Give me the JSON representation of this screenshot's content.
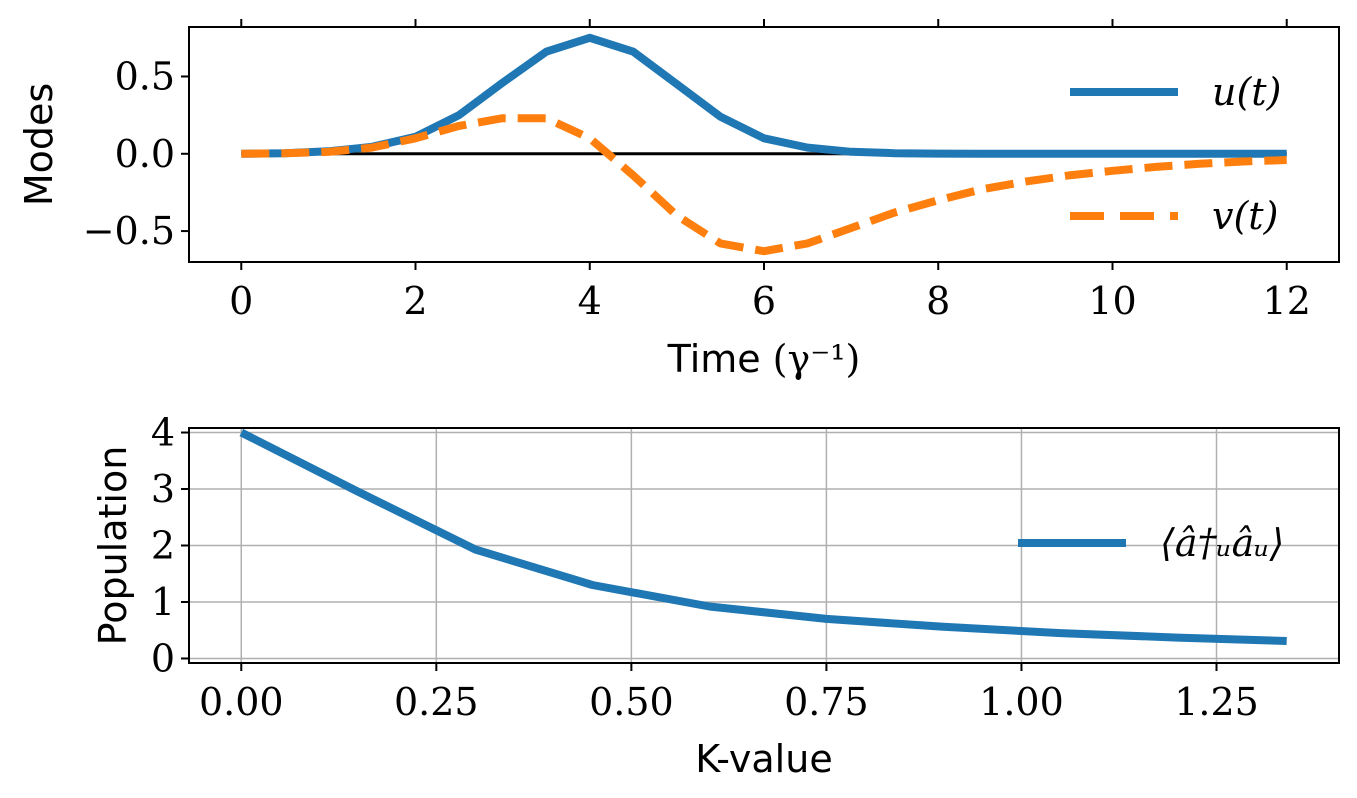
{
  "chart_data": [
    {
      "type": "line",
      "title": "",
      "xlabel": "Time",
      "xlabel_unit": "(γ⁻¹)",
      "ylabel": "Modes",
      "xlim": [
        -0.6,
        12.6
      ],
      "ylim": [
        -0.7,
        0.82
      ],
      "xticks": [
        0,
        2,
        4,
        6,
        8,
        10,
        12
      ],
      "xtick_labels": [
        "0",
        "2",
        "4",
        "6",
        "8",
        "10",
        "12"
      ],
      "yticks": [
        0.5,
        0.0,
        -0.5
      ],
      "ytick_labels": [
        "0.5",
        "0.0",
        "−0.5"
      ],
      "grid": false,
      "legend_position": "right",
      "x": [
        0,
        0.5,
        1,
        1.5,
        2,
        2.5,
        3,
        3.5,
        4,
        4.5,
        5,
        5.5,
        6,
        6.5,
        7,
        7.5,
        8,
        8.5,
        9,
        9.5,
        10,
        10.5,
        11,
        11.5,
        12
      ],
      "series": [
        {
          "name": "u(t)",
          "color": "#1f77b4",
          "style": "solid",
          "values": [
            0.0,
            0.004,
            0.016,
            0.045,
            0.11,
            0.25,
            0.46,
            0.66,
            0.75,
            0.66,
            0.45,
            0.24,
            0.1,
            0.04,
            0.013,
            0.004,
            0.001,
            0,
            0,
            0,
            0,
            0,
            0,
            0,
            0
          ]
        },
        {
          "name": "v(t)",
          "color": "#ff7f0e",
          "style": "dashed",
          "values": [
            0.0,
            0.003,
            0.012,
            0.04,
            0.1,
            0.18,
            0.23,
            0.23,
            0.1,
            -0.14,
            -0.4,
            -0.58,
            -0.63,
            -0.58,
            -0.48,
            -0.38,
            -0.3,
            -0.23,
            -0.18,
            -0.14,
            -0.11,
            -0.085,
            -0.065,
            -0.05,
            -0.04
          ]
        }
      ],
      "reference_line": {
        "y": 0,
        "color": "#000000"
      }
    },
    {
      "type": "line",
      "title": "",
      "xlabel": "K-value",
      "ylabel": "Population",
      "xlim": [
        -0.067,
        1.407
      ],
      "ylim": [
        -0.08,
        4.08
      ],
      "xticks": [
        0.0,
        0.25,
        0.5,
        0.75,
        1.0,
        1.25
      ],
      "xtick_labels": [
        "0.00",
        "0.25",
        "0.50",
        "0.75",
        "1.00",
        "1.25"
      ],
      "yticks": [
        0,
        1,
        2,
        3,
        4
      ],
      "ytick_labels": [
        "0",
        "1",
        "2",
        "3",
        "4"
      ],
      "grid": true,
      "legend_position": "right",
      "x": [
        0.0,
        0.15,
        0.3,
        0.45,
        0.6,
        0.75,
        0.9,
        1.05,
        1.2,
        1.34
      ],
      "series": [
        {
          "name": "⟨â†ᵤâᵤ⟩",
          "color": "#1f77b4",
          "style": "solid",
          "values": [
            4.0,
            2.95,
            1.93,
            1.3,
            0.92,
            0.7,
            0.56,
            0.45,
            0.37,
            0.31
          ]
        }
      ]
    }
  ]
}
